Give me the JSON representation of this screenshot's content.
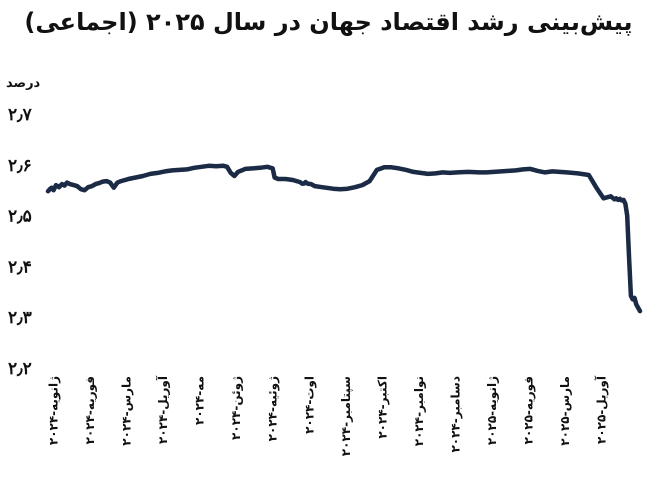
{
  "chart_data": {
    "type": "line",
    "title": "پیش‌بینی رشد اقتصاد جهان در سال ۲۰۲۵ (اجماعی)",
    "ylabel": "درصد",
    "ylim": [
      2.2,
      2.7
    ],
    "yticks": [
      "۲٫۲",
      "۲٫۳",
      "۲٫۴",
      "۲٫۵",
      "۲٫۶",
      "۲٫۷"
    ],
    "categories": [
      "ژانویه-۲۰۲۴",
      "فوریه-۲۰۲۴",
      "مارس-۲۰۲۴",
      "آوریل-۲۰۲۴",
      "مه-۲۰۲۴",
      "ژوئن-۲۰۲۴",
      "ژوئیه-۲۰۲۴",
      "اوت-۲۰۲۴",
      "سپتامبر-۲۰۲۴",
      "اکتبر-۲۰۲۴",
      "نوامبر-۲۰۲۴",
      "دسامبر-۲۰۲۴",
      "ژانویه-۲۰۲۵",
      "فوریه-۲۰۲۵",
      "مارس-۲۰۲۵",
      "آوریل-۲۰۲۵"
    ],
    "grid": false,
    "color": "#1b2a45",
    "series": [
      {
        "x": [
          0,
          0.05,
          0.1,
          0.15,
          0.22,
          0.3,
          0.38,
          0.45,
          0.52,
          0.6,
          0.7,
          0.8,
          0.9,
          1.0,
          1.05,
          1.1,
          1.2,
          1.3,
          1.4,
          1.5,
          1.6,
          1.7,
          1.8,
          1.85,
          1.9,
          2.0,
          2.2,
          2.4,
          2.6,
          2.8,
          3.0,
          3.2,
          3.4,
          3.6,
          3.8,
          4.0,
          4.2,
          4.4,
          4.6,
          4.8,
          4.9,
          5.0,
          5.1,
          5.2,
          5.4,
          5.6,
          5.8,
          6.0,
          6.15,
          6.2,
          6.3,
          6.5,
          6.7,
          6.9,
          6.95,
          7.0,
          7.05,
          7.1,
          7.2,
          7.3,
          7.5,
          7.8,
          8.0,
          8.2,
          8.4,
          8.6,
          8.8,
          9.0,
          9.2,
          9.4,
          9.6,
          9.8,
          10.0,
          10.2,
          10.4,
          10.6,
          10.8,
          11.0,
          11.2,
          11.5,
          11.8,
          12.0,
          12.2,
          12.4,
          12.6,
          12.8,
          13.0,
          13.2,
          13.4,
          13.6,
          13.8,
          14.0,
          14.2,
          14.5,
          14.8,
          15.0,
          15.2,
          15.4,
          15.5,
          15.55,
          15.6,
          15.65,
          15.7,
          15.75,
          15.8,
          15.85,
          15.9,
          15.95,
          16.0,
          16.05,
          16.1,
          16.2
        ],
        "y": [
          2.548,
          2.552,
          2.555,
          2.55,
          2.56,
          2.556,
          2.562,
          2.559,
          2.565,
          2.562,
          2.56,
          2.558,
          2.552,
          2.55,
          2.553,
          2.556,
          2.558,
          2.562,
          2.564,
          2.567,
          2.568,
          2.565,
          2.555,
          2.56,
          2.565,
          2.568,
          2.572,
          2.575,
          2.578,
          2.582,
          2.584,
          2.587,
          2.589,
          2.59,
          2.591,
          2.594,
          2.596,
          2.598,
          2.597,
          2.598,
          2.596,
          2.584,
          2.578,
          2.586,
          2.592,
          2.593,
          2.594,
          2.596,
          2.593,
          2.575,
          2.572,
          2.572,
          2.57,
          2.566,
          2.563,
          2.563,
          2.566,
          2.563,
          2.562,
          2.558,
          2.556,
          2.553,
          2.552,
          2.553,
          2.556,
          2.56,
          2.568,
          2.59,
          2.595,
          2.595,
          2.593,
          2.59,
          2.586,
          2.584,
          2.582,
          2.583,
          2.585,
          2.584,
          2.585,
          2.586,
          2.585,
          2.585,
          2.586,
          2.587,
          2.588,
          2.589,
          2.591,
          2.592,
          2.588,
          2.585,
          2.587,
          2.586,
          2.585,
          2.583,
          2.58,
          2.556,
          2.534,
          2.538,
          2.532,
          2.534,
          2.531,
          2.533,
          2.53,
          2.531,
          2.523,
          2.5,
          2.42,
          2.342,
          2.335,
          2.338,
          2.325,
          2.312
        ]
      }
    ]
  }
}
